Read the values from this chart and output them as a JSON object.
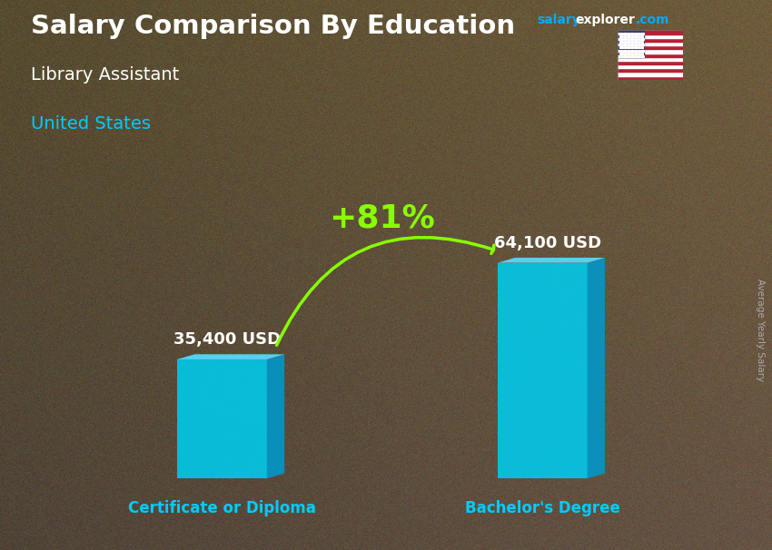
{
  "title": "Salary Comparison By Education",
  "subtitle_job": "Library Assistant",
  "subtitle_country": "United States",
  "categories": [
    "Certificate or Diploma",
    "Bachelor's Degree"
  ],
  "values": [
    35400,
    64100
  ],
  "value_labels": [
    "35,400 USD",
    "64,100 USD"
  ],
  "pct_change": "+81%",
  "bar_color_face": "#00CCEE",
  "bar_color_side": "#0099CC",
  "bar_color_top": "#55DDFF",
  "bg_color": "#7a6a50",
  "overlay_color": "#000000",
  "overlay_alpha": 0.38,
  "title_color": "#FFFFFF",
  "subtitle_job_color": "#FFFFFF",
  "subtitle_country_color": "#00CCFF",
  "category_color": "#00CCFF",
  "value_color": "#FFFFFF",
  "pct_color": "#88FF00",
  "arrow_color": "#88FF00",
  "website_salary_color": "#00AAFF",
  "website_explorer_color": "#FFFFFF",
  "website_com_color": "#00AAFF",
  "ylabel_text": "Average Yearly Salary",
  "bar_width": 0.28,
  "ylim": [
    0,
    85000
  ],
  "figsize": [
    8.5,
    6.06
  ],
  "dpi": 100
}
